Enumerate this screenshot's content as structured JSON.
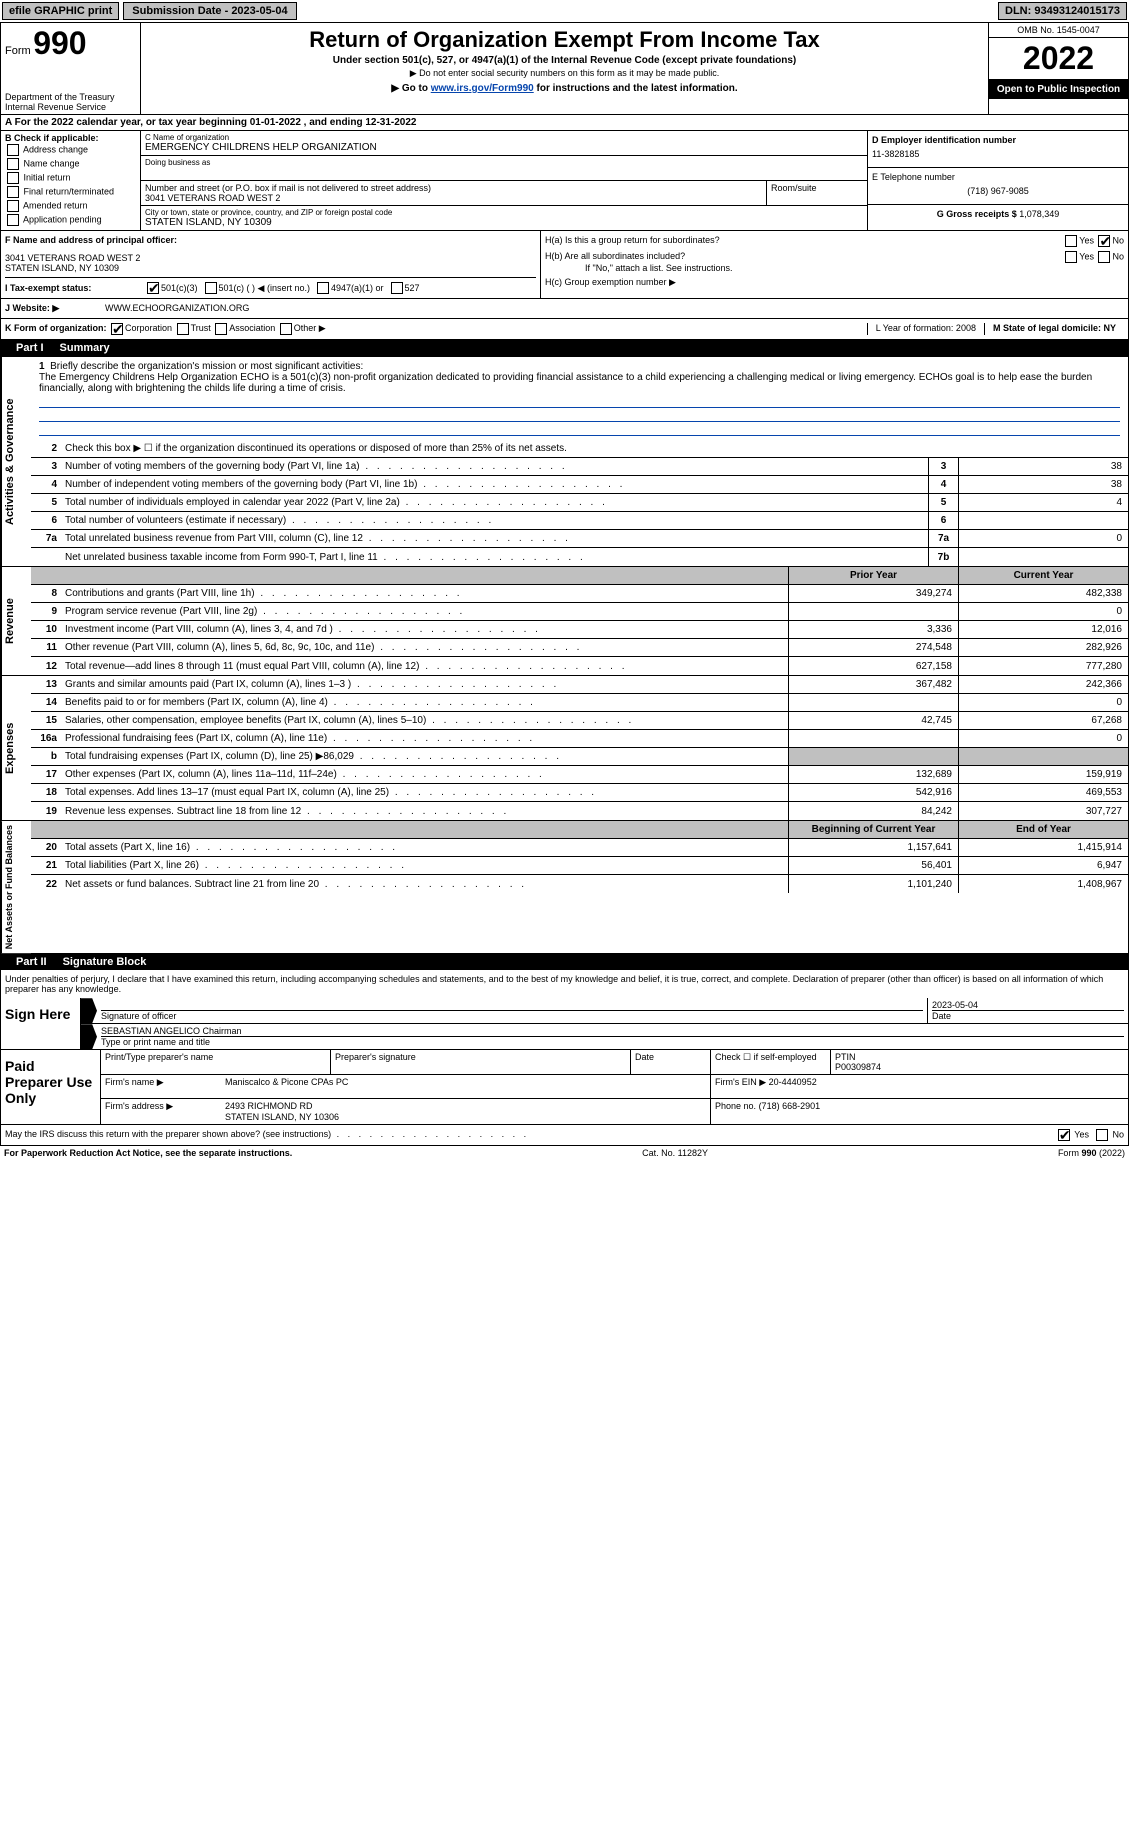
{
  "topbar": {
    "efile": "efile GRAPHIC print",
    "submission": "Submission Date - 2023-05-04",
    "dln": "DLN: 93493124015173"
  },
  "header": {
    "form_prefix": "Form",
    "form_number": "990",
    "dept": "Department of the Treasury",
    "irs": "Internal Revenue Service",
    "title": "Return of Organization Exempt From Income Tax",
    "subtitle": "Under section 501(c), 527, or 4947(a)(1) of the Internal Revenue Code (except private foundations)",
    "note1": "▶ Do not enter social security numbers on this form as it may be made public.",
    "note2_prefix": "▶ Go to ",
    "note2_link": "www.irs.gov/Form990",
    "note2_suffix": " for instructions and the latest information.",
    "omb": "OMB No. 1545-0047",
    "year": "2022",
    "open": "Open to Public Inspection"
  },
  "taxyear": "For the 2022 calendar year, or tax year beginning 01-01-2022    , and ending 12-31-2022",
  "sectionB": {
    "label": "B Check if applicable:",
    "opts": [
      "Address change",
      "Name change",
      "Initial return",
      "Final return/terminated",
      "Amended return",
      "Application pending"
    ]
  },
  "sectionC": {
    "name_label": "C Name of organization",
    "name": "EMERGENCY CHILDRENS HELP ORGANIZATION",
    "dba_label": "Doing business as",
    "street_label": "Number and street (or P.O. box if mail is not delivered to street address)",
    "street": "3041 VETERANS ROAD WEST 2",
    "room_label": "Room/suite",
    "city_label": "City or town, state or province, country, and ZIP or foreign postal code",
    "city": "STATEN ISLAND, NY  10309"
  },
  "sectionD": {
    "label": "D Employer identification number",
    "ein": "11-3828185"
  },
  "sectionE": {
    "label": "E Telephone number",
    "phone": "(718) 967-9085"
  },
  "sectionG": {
    "label": "G Gross receipts $",
    "amount": "1,078,349"
  },
  "sectionF": {
    "label": "F  Name and address of principal officer:",
    "line1": "3041 VETERANS ROAD WEST 2",
    "line2": "STATEN ISLAND, NY  10309"
  },
  "sectionH": {
    "a": "H(a)  Is this a group return for subordinates?",
    "b": "H(b)  Are all subordinates included?",
    "b_note": "If \"No,\" attach a list. See instructions.",
    "c": "H(c)  Group exemption number ▶",
    "yes": "Yes",
    "no": "No"
  },
  "sectionI": {
    "label": "I    Tax-exempt status:",
    "opt1": "501(c)(3)",
    "opt2": "501(c) (  ) ◀ (insert no.)",
    "opt3": "4947(a)(1) or",
    "opt4": "527"
  },
  "sectionJ": {
    "label": "J    Website: ▶",
    "url": "WWW.ECHOORGANIZATION.ORG"
  },
  "sectionK": {
    "label": "K Form of organization:",
    "opts": [
      "Corporation",
      "Trust",
      "Association",
      "Other ▶"
    ]
  },
  "sectionL": {
    "label": "L Year of formation: 2008"
  },
  "sectionM": {
    "label": "M State of legal domicile: NY"
  },
  "partI": {
    "num": "Part I",
    "title": "Summary"
  },
  "governance": {
    "label": "Activities & Governance",
    "line1_text": "Briefly describe the organization's mission or most significant activities:",
    "mission": "The Emergency Childrens Help Organization ECHO is a 501(c)(3) non-profit organization dedicated to providing financial assistance to a child experiencing a challenging medical or living emergency. ECHOs goal is to help ease the burden financially, along with brightening the childs life during a time of crisis.",
    "line2": "Check this box ▶ ☐  if the organization discontinued its operations or disposed of more than 25% of its net assets.",
    "lines": [
      {
        "n": "3",
        "t": "Number of voting members of the governing body (Part VI, line 1a)",
        "c": "3",
        "v": "38"
      },
      {
        "n": "4",
        "t": "Number of independent voting members of the governing body (Part VI, line 1b)",
        "c": "4",
        "v": "38"
      },
      {
        "n": "5",
        "t": "Total number of individuals employed in calendar year 2022 (Part V, line 2a)",
        "c": "5",
        "v": "4"
      },
      {
        "n": "6",
        "t": "Total number of volunteers (estimate if necessary)",
        "c": "6",
        "v": ""
      },
      {
        "n": "7a",
        "t": "Total unrelated business revenue from Part VIII, column (C), line 12",
        "c": "7a",
        "v": "0"
      },
      {
        "n": "",
        "t": "Net unrelated business taxable income from Form 990-T, Part I, line 11",
        "c": "7b",
        "v": ""
      }
    ]
  },
  "revenue": {
    "label": "Revenue",
    "header_prior": "Prior Year",
    "header_current": "Current Year",
    "lines": [
      {
        "n": "8",
        "t": "Contributions and grants (Part VIII, line 1h)",
        "p": "349,274",
        "c": "482,338"
      },
      {
        "n": "9",
        "t": "Program service revenue (Part VIII, line 2g)",
        "p": "",
        "c": "0"
      },
      {
        "n": "10",
        "t": "Investment income (Part VIII, column (A), lines 3, 4, and 7d )",
        "p": "3,336",
        "c": "12,016"
      },
      {
        "n": "11",
        "t": "Other revenue (Part VIII, column (A), lines 5, 6d, 8c, 9c, 10c, and 11e)",
        "p": "274,548",
        "c": "282,926"
      },
      {
        "n": "12",
        "t": "Total revenue—add lines 8 through 11 (must equal Part VIII, column (A), line 12)",
        "p": "627,158",
        "c": "777,280"
      }
    ]
  },
  "expenses": {
    "label": "Expenses",
    "lines": [
      {
        "n": "13",
        "t": "Grants and similar amounts paid (Part IX, column (A), lines 1–3 )",
        "p": "367,482",
        "c": "242,366"
      },
      {
        "n": "14",
        "t": "Benefits paid to or for members (Part IX, column (A), line 4)",
        "p": "",
        "c": "0"
      },
      {
        "n": "15",
        "t": "Salaries, other compensation, employee benefits (Part IX, column (A), lines 5–10)",
        "p": "42,745",
        "c": "67,268"
      },
      {
        "n": "16a",
        "t": "Professional fundraising fees (Part IX, column (A), line 11e)",
        "p": "",
        "c": "0"
      },
      {
        "n": "b",
        "t": "Total fundraising expenses (Part IX, column (D), line 25) ▶86,029",
        "p": "",
        "c": "",
        "shaded": true
      },
      {
        "n": "17",
        "t": "Other expenses (Part IX, column (A), lines 11a–11d, 11f–24e)",
        "p": "132,689",
        "c": "159,919"
      },
      {
        "n": "18",
        "t": "Total expenses. Add lines 13–17 (must equal Part IX, column (A), line 25)",
        "p": "542,916",
        "c": "469,553"
      },
      {
        "n": "19",
        "t": "Revenue less expenses. Subtract line 18 from line 12",
        "p": "84,242",
        "c": "307,727"
      }
    ]
  },
  "netassets": {
    "label": "Net Assets or Fund Balances",
    "header_begin": "Beginning of Current Year",
    "header_end": "End of Year",
    "lines": [
      {
        "n": "20",
        "t": "Total assets (Part X, line 16)",
        "p": "1,157,641",
        "c": "1,415,914"
      },
      {
        "n": "21",
        "t": "Total liabilities (Part X, line 26)",
        "p": "56,401",
        "c": "6,947"
      },
      {
        "n": "22",
        "t": "Net assets or fund balances. Subtract line 21 from line 20",
        "p": "1,101,240",
        "c": "1,408,967"
      }
    ]
  },
  "partII": {
    "num": "Part II",
    "title": "Signature Block"
  },
  "signature": {
    "perjury": "Under penalties of perjury, I declare that I have examined this return, including accompanying schedules and statements, and to the best of my knowledge and belief, it is true, correct, and complete. Declaration of preparer (other than officer) is based on all information of which preparer has any knowledge.",
    "sign_here": "Sign Here",
    "sig_officer": "Signature of officer",
    "date": "2023-05-04",
    "date_label": "Date",
    "name": "SEBASTIAN ANGELICO  Chairman",
    "name_label": "Type or print name and title"
  },
  "paid": {
    "label": "Paid Preparer Use Only",
    "h1": "Print/Type preparer's name",
    "h2": "Preparer's signature",
    "h3": "Date",
    "h4": "Check ☐ if self-employed",
    "h5_label": "PTIN",
    "h5": "P00309874",
    "firm_name_label": "Firm's name      ▶",
    "firm_name": "Maniscalco & Picone CPAs PC",
    "firm_ein_label": "Firm's EIN ▶",
    "firm_ein": "20-4440952",
    "firm_addr_label": "Firm's address ▶",
    "firm_addr1": "2493 RICHMOND RD",
    "firm_addr2": "STATEN ISLAND, NY  10306",
    "phone_label": "Phone no.",
    "phone": "(718) 668-2901"
  },
  "discuss": {
    "text": "May the IRS discuss this return with the preparer shown above? (see instructions)",
    "yes": "Yes",
    "no": "No"
  },
  "footer": {
    "left": "For Paperwork Reduction Act Notice, see the separate instructions.",
    "center": "Cat. No. 11282Y",
    "right": "Form 990 (2022)"
  }
}
